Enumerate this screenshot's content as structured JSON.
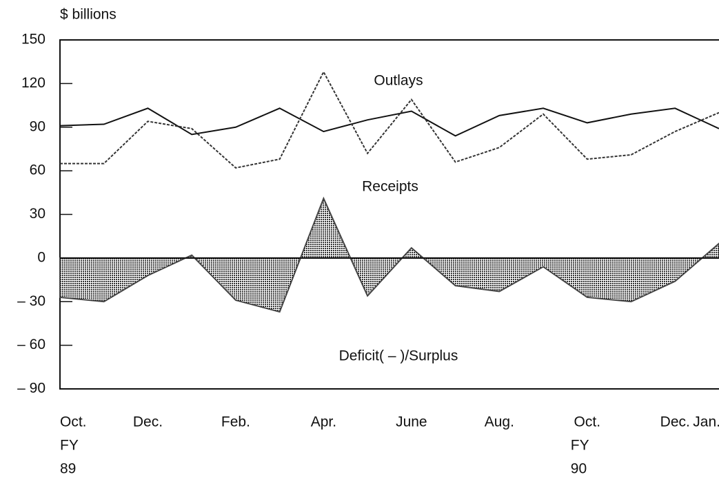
{
  "chart_data": {
    "type": "line",
    "y_axis_label": "$ billions",
    "categories": [
      "Oct.",
      null,
      "Dec.",
      null,
      "Feb.",
      null,
      "Apr.",
      null,
      "June",
      null,
      "Aug.",
      null,
      "Oct.",
      null,
      "Dec.",
      "Jan."
    ],
    "fiscal_year_labels": [
      {
        "index": 0,
        "lines": [
          "FY",
          "89"
        ]
      },
      {
        "index": 12,
        "lines": [
          "FY",
          "90"
        ]
      }
    ],
    "series": [
      {
        "name": "Outlays",
        "style": "solid",
        "color": "#111111",
        "values": [
          91,
          92,
          103,
          85,
          90,
          103,
          87,
          95,
          101,
          84,
          98,
          103,
          93,
          99,
          103,
          89
        ]
      },
      {
        "name": "Receipts",
        "style": "dashed",
        "color": "#333333",
        "values": [
          65,
          65,
          94,
          89,
          62,
          68,
          128,
          72,
          109,
          66,
          76,
          99,
          68,
          71,
          87,
          100
        ]
      },
      {
        "name": "Deficit( – )/Surplus",
        "style": "area",
        "color": "#444444",
        "values": [
          -27,
          -30,
          -12,
          2,
          -29,
          -37,
          41,
          -26,
          7,
          -19,
          -23,
          -6,
          -27,
          -30,
          -16,
          10
        ]
      }
    ],
    "ylim": [
      -90,
      150
    ],
    "yticks": [
      {
        "value": -90,
        "label": "– 90"
      },
      {
        "value": -60,
        "label": "– 60"
      },
      {
        "value": -30,
        "label": "– 30"
      },
      0,
      30,
      60,
      90,
      120,
      150
    ]
  }
}
